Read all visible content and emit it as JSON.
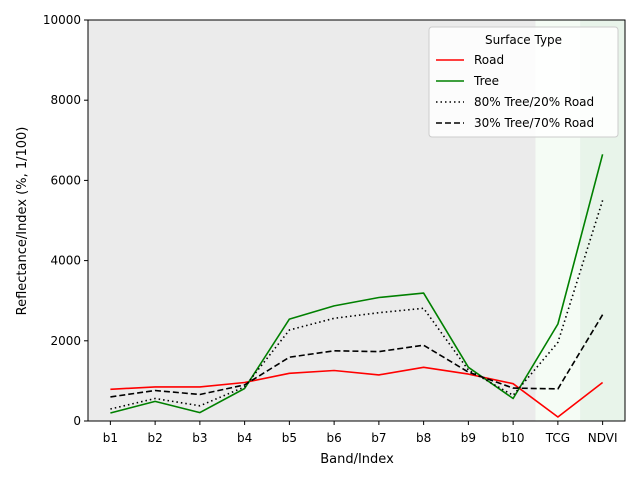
{
  "chart_data": {
    "type": "line",
    "title": "",
    "xlabel": "Band/Index",
    "ylabel": "Reflectance/Index (%, 1/100)",
    "categories": [
      "b1",
      "b2",
      "b3",
      "b4",
      "b5",
      "b6",
      "b7",
      "b8",
      "b9",
      "b10",
      "TCG",
      "NDVI"
    ],
    "ylim": [
      0,
      10000
    ],
    "yticks": [
      0,
      2000,
      4000,
      6000,
      8000,
      10000
    ],
    "grid": false,
    "background_color": "#ebebeb",
    "shaded_regions": [
      {
        "from": 9.5,
        "to": 10.5,
        "color": "#f5fcf5"
      },
      {
        "from": 10.5,
        "to": 11.5,
        "color": "#e8f4ea"
      }
    ],
    "legend": {
      "title": "Surface Type",
      "placement": "top-right"
    },
    "series": [
      {
        "name": "Road",
        "color": "#ff0000",
        "dash": "solid",
        "values": [
          790,
          850,
          850,
          960,
          1190,
          1260,
          1150,
          1340,
          1170,
          930,
          100,
          960
        ]
      },
      {
        "name": "Tree",
        "color": "#008000",
        "dash": "solid",
        "values": [
          200,
          490,
          210,
          810,
          2540,
          2870,
          3080,
          3190,
          1340,
          560,
          2420,
          6650
        ]
      },
      {
        "name": "80% Tree/20% Road",
        "color": "#000000",
        "dash": "dotted",
        "values": [
          300,
          560,
          380,
          850,
          2270,
          2560,
          2700,
          2810,
          1270,
          640,
          1960,
          5500
        ]
      },
      {
        "name": "30% Tree/70% Road",
        "color": "#000000",
        "dash": "dashed",
        "values": [
          600,
          760,
          660,
          900,
          1590,
          1750,
          1730,
          1890,
          1220,
          820,
          800,
          2650
        ]
      }
    ]
  }
}
